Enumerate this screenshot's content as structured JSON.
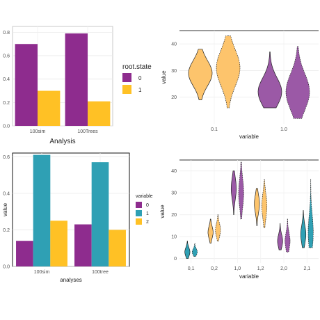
{
  "colors": {
    "purple": "#8e2c8e",
    "orange": "#ffc125",
    "teal": "#2fa0b4",
    "violin_purple": "#9b59a6",
    "violin_orange": "#fdc46c"
  },
  "chart_data": [
    {
      "type": "bar",
      "categories": [
        "100sim",
        "100Trees"
      ],
      "series": [
        {
          "name": "0",
          "values": [
            0.7,
            0.79
          ]
        },
        {
          "name": "1",
          "values": [
            0.3,
            0.21
          ]
        }
      ],
      "xlabel": "Analysis",
      "ylabel": "",
      "ylim": [
        0,
        0.85
      ],
      "yticks": [
        "0.0",
        "0.2",
        "0.4",
        "0.6",
        "0.8"
      ],
      "legend_title": "root.state",
      "legend_position": "right",
      "grid": true
    },
    {
      "type": "violin",
      "categories": [
        "0.1",
        "1.0"
      ],
      "series": [
        {
          "name": "0.1",
          "median": 29,
          "min": 19,
          "max": 38
        },
        {
          "name": "0.1",
          "median": 31,
          "min": 16,
          "max": 43
        },
        {
          "name": "1.0",
          "median": 22,
          "min": 16,
          "max": 37
        },
        {
          "name": "1.0",
          "median": 22,
          "min": 12,
          "max": 39
        }
      ],
      "xlabel": "variable",
      "ylabel": "value",
      "ylim": [
        10,
        45
      ],
      "yticks": [
        "20",
        "30",
        "40"
      ],
      "grid": true
    },
    {
      "type": "bar",
      "categories": [
        "100sim",
        "100tree"
      ],
      "series": [
        {
          "name": "0",
          "values": [
            0.14,
            0.23
          ]
        },
        {
          "name": "1",
          "values": [
            0.61,
            0.57
          ]
        },
        {
          "name": "2",
          "values": [
            0.25,
            0.2
          ]
        }
      ],
      "xlabel": "analyses",
      "ylabel": "value",
      "ylim": [
        0,
        0.62
      ],
      "yticks": [
        "0.0",
        "0.2",
        "0.4",
        "0.6"
      ],
      "legend_title": "variable",
      "legend_position": "right",
      "grid": true
    },
    {
      "type": "violin",
      "categories": [
        "0,1",
        "0,2",
        "1,0",
        "1,2",
        "2,0",
        "2,1"
      ],
      "series": [
        {
          "name": "0,1",
          "median": 3,
          "min": 0,
          "max": 8
        },
        {
          "name": "0,1",
          "median": 3,
          "min": 1,
          "max": 7
        },
        {
          "name": "0,2",
          "median": 12,
          "min": 7,
          "max": 18
        },
        {
          "name": "0,2",
          "median": 13,
          "min": 8,
          "max": 20
        },
        {
          "name": "1,0",
          "median": 32,
          "min": 20,
          "max": 40
        },
        {
          "name": "1,0",
          "median": 30,
          "min": 18,
          "max": 44
        },
        {
          "name": "1,2",
          "median": 25,
          "min": 15,
          "max": 32
        },
        {
          "name": "1,2",
          "median": 24,
          "min": 14,
          "max": 36
        },
        {
          "name": "2,0",
          "median": 8,
          "min": 4,
          "max": 16
        },
        {
          "name": "2,0",
          "median": 8,
          "min": 3,
          "max": 18
        },
        {
          "name": "2,1",
          "median": 11,
          "min": 5,
          "max": 22
        },
        {
          "name": "2,1",
          "median": 12,
          "min": 5,
          "max": 36
        }
      ],
      "xlabel": "variable",
      "ylabel": "value",
      "ylim": [
        -2,
        45
      ],
      "yticks": [
        "0",
        "10",
        "20",
        "30",
        "40"
      ],
      "grid": true
    }
  ]
}
